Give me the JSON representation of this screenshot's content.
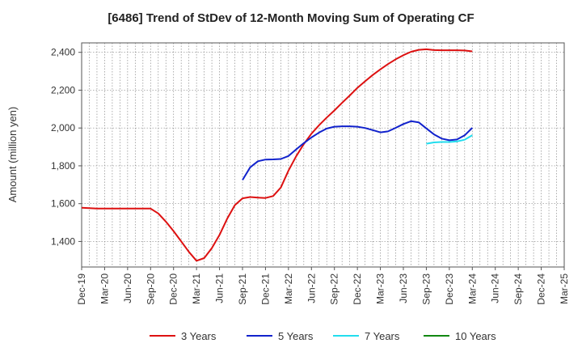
{
  "chart_data": {
    "type": "line",
    "title": "[6486]  Trend of StDev of 12-Month Moving Sum of Operating CF",
    "ylabel": "Amount (million yen)",
    "xlabel": "",
    "x_ticks": [
      "Dec-19",
      "Mar-20",
      "Jun-20",
      "Sep-20",
      "Dec-20",
      "Mar-21",
      "Jun-21",
      "Sep-21",
      "Dec-21",
      "Mar-22",
      "Jun-22",
      "Sep-22",
      "Dec-22",
      "Mar-23",
      "Jun-23",
      "Sep-23",
      "Dec-23",
      "Mar-24",
      "Jun-24",
      "Sep-24",
      "Dec-24",
      "Mar-25"
    ],
    "y_ticks": [
      1400,
      1600,
      1800,
      2000,
      2200,
      2400
    ],
    "ylim": [
      1265,
      2450
    ],
    "grid": true,
    "legend_position": "bottom",
    "series": [
      {
        "name": "3 Years",
        "color": "#dd1111",
        "x": [
          "2019-12",
          "2020-01",
          "2020-02",
          "2020-03",
          "2020-04",
          "2020-05",
          "2020-06",
          "2020-07",
          "2020-08",
          "2020-09",
          "2020-10",
          "2020-11",
          "2020-12",
          "2021-01",
          "2021-02",
          "2021-03",
          "2021-04",
          "2021-05",
          "2021-06",
          "2021-07",
          "2021-08",
          "2021-09",
          "2021-10",
          "2021-11",
          "2021-12",
          "2022-01",
          "2022-02",
          "2022-03",
          "2022-04",
          "2022-05",
          "2022-06",
          "2022-07",
          "2022-08",
          "2022-09",
          "2022-10",
          "2022-11",
          "2022-12",
          "2023-01",
          "2023-02",
          "2023-03",
          "2023-04",
          "2023-05",
          "2023-06",
          "2023-07",
          "2023-08",
          "2023-09",
          "2023-10",
          "2023-11",
          "2023-12",
          "2024-01",
          "2024-02",
          "2024-03"
        ],
        "values": [
          1578,
          1576,
          1574,
          1574,
          1574,
          1574,
          1574,
          1574,
          1574,
          1574,
          1548,
          1505,
          1455,
          1400,
          1345,
          1298,
          1312,
          1365,
          1435,
          1520,
          1592,
          1628,
          1635,
          1632,
          1630,
          1640,
          1685,
          1775,
          1850,
          1915,
          1970,
          2015,
          2055,
          2093,
          2133,
          2172,
          2212,
          2247,
          2280,
          2310,
          2338,
          2363,
          2385,
          2403,
          2413,
          2416,
          2412,
          2411,
          2411,
          2411,
          2410,
          2405
        ]
      },
      {
        "name": "5 Years",
        "color": "#1122cc",
        "x": [
          "2021-09",
          "2021-10",
          "2021-11",
          "2021-12",
          "2022-01",
          "2022-02",
          "2022-03",
          "2022-04",
          "2022-05",
          "2022-06",
          "2022-07",
          "2022-08",
          "2022-09",
          "2022-10",
          "2022-11",
          "2022-12",
          "2023-01",
          "2023-02",
          "2023-03",
          "2023-04",
          "2023-05",
          "2023-06",
          "2023-07",
          "2023-08",
          "2023-09",
          "2023-10",
          "2023-11",
          "2023-12",
          "2024-01",
          "2024-02",
          "2024-03"
        ],
        "values": [
          1725,
          1792,
          1824,
          1833,
          1834,
          1836,
          1852,
          1886,
          1920,
          1950,
          1976,
          1997,
          2007,
          2009,
          2009,
          2007,
          2000,
          1989,
          1977,
          1982,
          2001,
          2021,
          2036,
          2030,
          1998,
          1966,
          1944,
          1935,
          1939,
          1961,
          2001
        ]
      },
      {
        "name": "7 Years",
        "color": "#22ddee",
        "x": [
          "2023-09",
          "2023-10",
          "2023-11",
          "2023-12",
          "2024-01",
          "2024-02",
          "2024-03"
        ],
        "values": [
          1917,
          1924,
          1926,
          1926,
          1929,
          1938,
          1962
        ]
      },
      {
        "name": "10 Years",
        "color": "#118811",
        "x": [],
        "values": []
      }
    ]
  }
}
